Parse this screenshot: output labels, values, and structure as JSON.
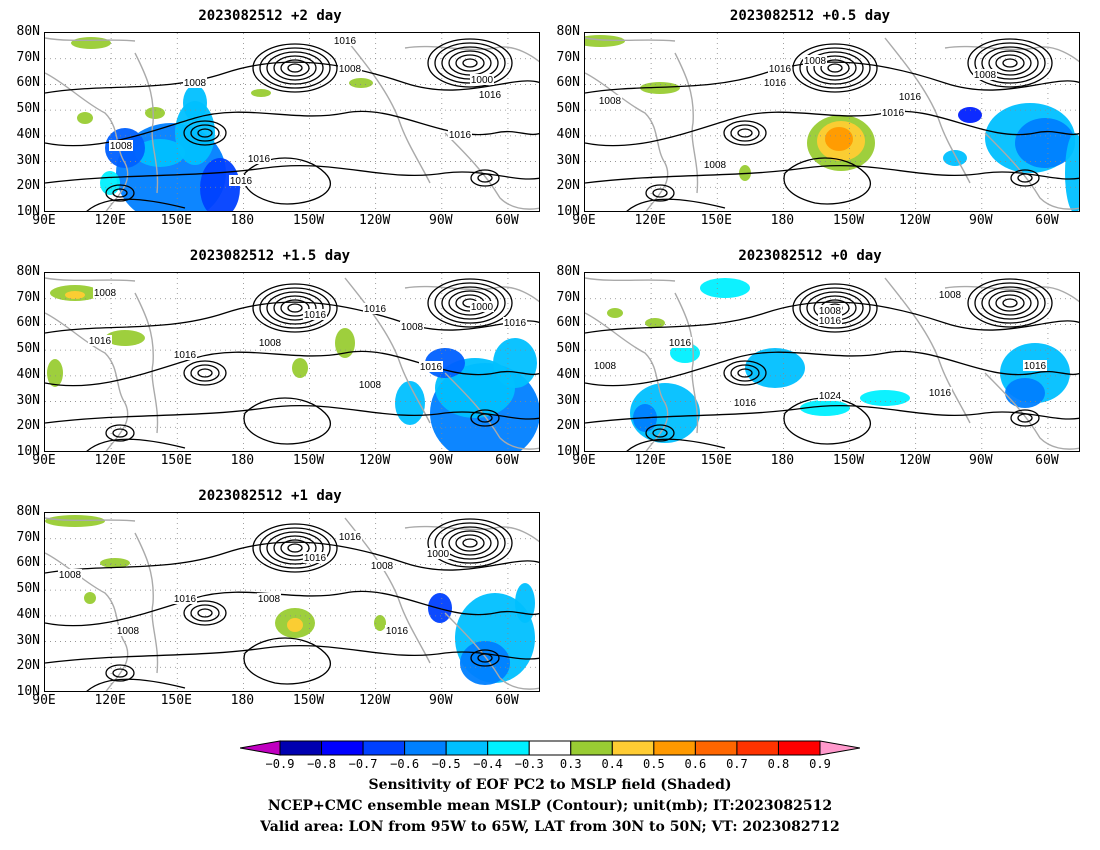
{
  "panels": [
    {
      "title": "2023082512 +2 day",
      "col": 0,
      "row": 0,
      "blobs": [
        {
          "x": 126,
          "y": 140,
          "rx": 55,
          "ry": 50,
          "c": "#0080ff"
        },
        {
          "x": 115,
          "y": 120,
          "rx": 25,
          "ry": 14,
          "c": "#00c0ff"
        },
        {
          "x": 150,
          "y": 100,
          "rx": 20,
          "ry": 32,
          "c": "#00c0ff"
        },
        {
          "x": 80,
          "y": 115,
          "rx": 20,
          "ry": 20,
          "c": "#0060ff"
        },
        {
          "x": 175,
          "y": 155,
          "rx": 20,
          "ry": 30,
          "c": "#0040ff"
        },
        {
          "x": 150,
          "y": 70,
          "rx": 12,
          "ry": 18,
          "c": "#00c0ff"
        },
        {
          "x": 65,
          "y": 150,
          "rx": 10,
          "ry": 12,
          "c": "#00f0ff"
        },
        {
          "x": -180,
          "y": 50,
          "rx": 12,
          "ry": 5,
          "c": "#99cc33"
        },
        {
          "x": -450,
          "y": 10,
          "rx": 20,
          "ry": 6,
          "c": "#99cc33"
        },
        {
          "x": -280,
          "y": 60,
          "rx": 10,
          "ry": 4,
          "c": "#99cc33"
        },
        {
          "x": 40,
          "y": 85,
          "rx": 8,
          "ry": 6,
          "c": "#99cc33"
        },
        {
          "x": 110,
          "y": 80,
          "rx": 10,
          "ry": 6,
          "c": "#99cc33"
        }
      ],
      "labels": [
        {
          "t": "1016",
          "x": 300,
          "y": 8
        },
        {
          "t": "1008",
          "x": 305,
          "y": 36
        },
        {
          "t": "1008",
          "x": 150,
          "y": 50
        },
        {
          "t": "1000",
          "x": 437,
          "y": 47
        },
        {
          "t": "1016",
          "x": 445,
          "y": 62
        },
        {
          "t": "1016",
          "x": 415,
          "y": 102
        },
        {
          "t": "1008",
          "x": 76,
          "y": 113
        },
        {
          "t": "1016",
          "x": 214,
          "y": 126
        },
        {
          "t": "1016",
          "x": 196,
          "y": 148
        }
      ]
    },
    {
      "title": "2023082512 +0.5 day",
      "col": 1,
      "row": 0,
      "blobs": [
        {
          "x": 256,
          "y": 110,
          "rx": 34,
          "ry": 28,
          "c": "#99cc33"
        },
        {
          "x": 256,
          "y": 108,
          "rx": 24,
          "ry": 20,
          "c": "#ffcc33"
        },
        {
          "x": 254,
          "y": 106,
          "rx": 14,
          "ry": 12,
          "c": "#ff9900"
        },
        {
          "x": 445,
          "y": 105,
          "rx": 45,
          "ry": 35,
          "c": "#00c0ff"
        },
        {
          "x": 460,
          "y": 110,
          "rx": 30,
          "ry": 25,
          "c": "#0080ff"
        },
        {
          "x": 490,
          "y": 140,
          "rx": 10,
          "ry": 40,
          "c": "#00c0ff"
        },
        {
          "x": 385,
          "y": 82,
          "rx": 12,
          "ry": 8,
          "c": "#0020ff"
        },
        {
          "x": 370,
          "y": 125,
          "rx": 12,
          "ry": 8,
          "c": "#00c0ff"
        },
        {
          "x": 15,
          "y": 8,
          "rx": 25,
          "ry": 6,
          "c": "#99cc33"
        },
        {
          "x": 75,
          "y": 55,
          "rx": 20,
          "ry": 6,
          "c": "#99cc33"
        },
        {
          "x": 160,
          "y": 140,
          "rx": 6,
          "ry": 8,
          "c": "#99cc33"
        }
      ],
      "labels": [
        {
          "t": "1008",
          "x": 230,
          "y": 28
        },
        {
          "t": "1016",
          "x": 195,
          "y": 36
        },
        {
          "t": "1016",
          "x": 190,
          "y": 50
        },
        {
          "t": "1008",
          "x": 400,
          "y": 42
        },
        {
          "t": "1008",
          "x": 25,
          "y": 68
        },
        {
          "t": "1016",
          "x": 325,
          "y": 64
        },
        {
          "t": "1016",
          "x": 308,
          "y": 80
        },
        {
          "t": "1008",
          "x": 130,
          "y": 132
        }
      ]
    },
    {
      "title": "2023082512 +1.5 day",
      "col": 0,
      "row": 1,
      "blobs": [
        {
          "x": 440,
          "y": 140,
          "rx": 55,
          "ry": 50,
          "c": "#0080ff"
        },
        {
          "x": 430,
          "y": 115,
          "rx": 40,
          "ry": 30,
          "c": "#00c0ff"
        },
        {
          "x": 470,
          "y": 90,
          "rx": 22,
          "ry": 25,
          "c": "#00c0ff"
        },
        {
          "x": 400,
          "y": 90,
          "rx": 20,
          "ry": 15,
          "c": "#0060ff"
        },
        {
          "x": 365,
          "y": 130,
          "rx": 15,
          "ry": 22,
          "c": "#00c0ff"
        },
        {
          "x": 30,
          "y": 20,
          "rx": 25,
          "ry": 8,
          "c": "#99cc33"
        },
        {
          "x": 30,
          "y": 22,
          "rx": 10,
          "ry": 4,
          "c": "#ffcc33"
        },
        {
          "x": 80,
          "y": 65,
          "rx": 20,
          "ry": 8,
          "c": "#99cc33"
        },
        {
          "x": 300,
          "y": 70,
          "rx": 10,
          "ry": 15,
          "c": "#99cc33"
        },
        {
          "x": 255,
          "y": 95,
          "rx": 8,
          "ry": 10,
          "c": "#99cc33"
        },
        {
          "x": 10,
          "y": 100,
          "rx": 8,
          "ry": 14,
          "c": "#99cc33"
        }
      ],
      "labels": [
        {
          "t": "1008",
          "x": 60,
          "y": 20
        },
        {
          "t": "1016",
          "x": 270,
          "y": 42
        },
        {
          "t": "1016",
          "x": 330,
          "y": 36
        },
        {
          "t": "1000",
          "x": 437,
          "y": 34
        },
        {
          "t": "1008",
          "x": 367,
          "y": 54
        },
        {
          "t": "1016",
          "x": 470,
          "y": 50
        },
        {
          "t": "1008",
          "x": 225,
          "y": 70
        },
        {
          "t": "1016",
          "x": 55,
          "y": 68
        },
        {
          "t": "1016",
          "x": 140,
          "y": 82
        },
        {
          "t": "1016",
          "x": 386,
          "y": 94
        },
        {
          "t": "1008",
          "x": 325,
          "y": 112
        }
      ]
    },
    {
      "title": "2023082512 +0 day",
      "col": 1,
      "row": 1,
      "blobs": [
        {
          "x": 140,
          "y": 15,
          "rx": 25,
          "ry": 10,
          "c": "#00f0ff"
        },
        {
          "x": 190,
          "y": 95,
          "rx": 30,
          "ry": 20,
          "c": "#00c0ff"
        },
        {
          "x": 450,
          "y": 100,
          "rx": 35,
          "ry": 30,
          "c": "#00c0ff"
        },
        {
          "x": 440,
          "y": 120,
          "rx": 20,
          "ry": 15,
          "c": "#0080ff"
        },
        {
          "x": 80,
          "y": 140,
          "rx": 35,
          "ry": 30,
          "c": "#00c0ff"
        },
        {
          "x": 60,
          "y": 145,
          "rx": 12,
          "ry": 14,
          "c": "#0080ff"
        },
        {
          "x": 300,
          "y": 125,
          "rx": 25,
          "ry": 8,
          "c": "#00f0ff"
        },
        {
          "x": 240,
          "y": 135,
          "rx": 25,
          "ry": 8,
          "c": "#00f0ff"
        },
        {
          "x": 100,
          "y": 80,
          "rx": 15,
          "ry": 10,
          "c": "#00f0ff"
        },
        {
          "x": 30,
          "y": 40,
          "rx": 8,
          "ry": 5,
          "c": "#99cc33"
        },
        {
          "x": 70,
          "y": 50,
          "rx": 10,
          "ry": 5,
          "c": "#99cc33"
        }
      ],
      "labels": [
        {
          "t": "1008",
          "x": 365,
          "y": 22
        },
        {
          "t": "1008",
          "x": 245,
          "y": 38
        },
        {
          "t": "1016",
          "x": 245,
          "y": 48
        },
        {
          "t": "1016",
          "x": 95,
          "y": 70
        },
        {
          "t": "1008",
          "x": 20,
          "y": 93
        },
        {
          "t": "1016",
          "x": 450,
          "y": 93
        },
        {
          "t": "1024",
          "x": 245,
          "y": 123
        },
        {
          "t": "1016",
          "x": 355,
          "y": 120
        },
        {
          "t": "1016",
          "x": 160,
          "y": 130
        }
      ]
    },
    {
      "title": "2023082512 +1 day",
      "col": 0,
      "row": 2,
      "blobs": [
        {
          "x": 450,
          "y": 125,
          "rx": 40,
          "ry": 45,
          "c": "#00c0ff"
        },
        {
          "x": 440,
          "y": 150,
          "rx": 25,
          "ry": 22,
          "c": "#0080ff"
        },
        {
          "x": 395,
          "y": 95,
          "rx": 12,
          "ry": 15,
          "c": "#0040ff"
        },
        {
          "x": 480,
          "y": 90,
          "rx": 10,
          "ry": 20,
          "c": "#00c0ff"
        },
        {
          "x": 250,
          "y": 110,
          "rx": 20,
          "ry": 15,
          "c": "#99cc33"
        },
        {
          "x": 250,
          "y": 112,
          "rx": 8,
          "ry": 7,
          "c": "#ffcc33"
        },
        {
          "x": 30,
          "y": 8,
          "rx": 30,
          "ry": 6,
          "c": "#99cc33"
        },
        {
          "x": 70,
          "y": 50,
          "rx": 15,
          "ry": 5,
          "c": "#99cc33"
        },
        {
          "x": 335,
          "y": 110,
          "rx": 6,
          "ry": 8,
          "c": "#99cc33"
        },
        {
          "x": 45,
          "y": 85,
          "rx": 6,
          "ry": 6,
          "c": "#99cc33"
        }
      ],
      "labels": [
        {
          "t": "1016",
          "x": 305,
          "y": 24
        },
        {
          "t": "1016",
          "x": 270,
          "y": 45
        },
        {
          "t": "1008",
          "x": 337,
          "y": 53
        },
        {
          "t": "1000",
          "x": 393,
          "y": 41
        },
        {
          "t": "1008",
          "x": 25,
          "y": 62
        },
        {
          "t": "1016",
          "x": 140,
          "y": 86
        },
        {
          "t": "1008",
          "x": 224,
          "y": 86
        },
        {
          "t": "1008",
          "x": 83,
          "y": 118
        },
        {
          "t": "1016",
          "x": 352,
          "y": 118
        }
      ]
    }
  ],
  "lat_labels": [
    "80N",
    "70N",
    "60N",
    "50N",
    "40N",
    "30N",
    "20N",
    "10N"
  ],
  "lon_labels": [
    "90E",
    "120E",
    "150E",
    "180",
    "150W",
    "120W",
    "90W",
    "60W"
  ],
  "colorbar": {
    "colors": [
      "#c000c0",
      "#0000b0",
      "#0000ff",
      "#0040ff",
      "#0080ff",
      "#00c0ff",
      "#00f0ff",
      "#ffffff",
      "#99cc33",
      "#ffcc33",
      "#ff9900",
      "#ff6600",
      "#ff3300",
      "#ff0000",
      "#ff99cc"
    ],
    "labels": [
      "−0.9",
      "−0.8",
      "−0.7",
      "−0.6",
      "−0.5",
      "−0.4",
      "−0.3",
      "0.3",
      "0.4",
      "0.5",
      "0.6",
      "0.7",
      "0.8",
      "0.9"
    ]
  },
  "caption": [
    "Sensitivity of EOF PC2 to MSLP field (Shaded)",
    "NCEP+CMC ensemble mean MSLP (Contour); unit(mb); IT:2023082512",
    "Valid area: LON from 95W to 65W, LAT from 30N to 50N; VT: 2023082712"
  ]
}
